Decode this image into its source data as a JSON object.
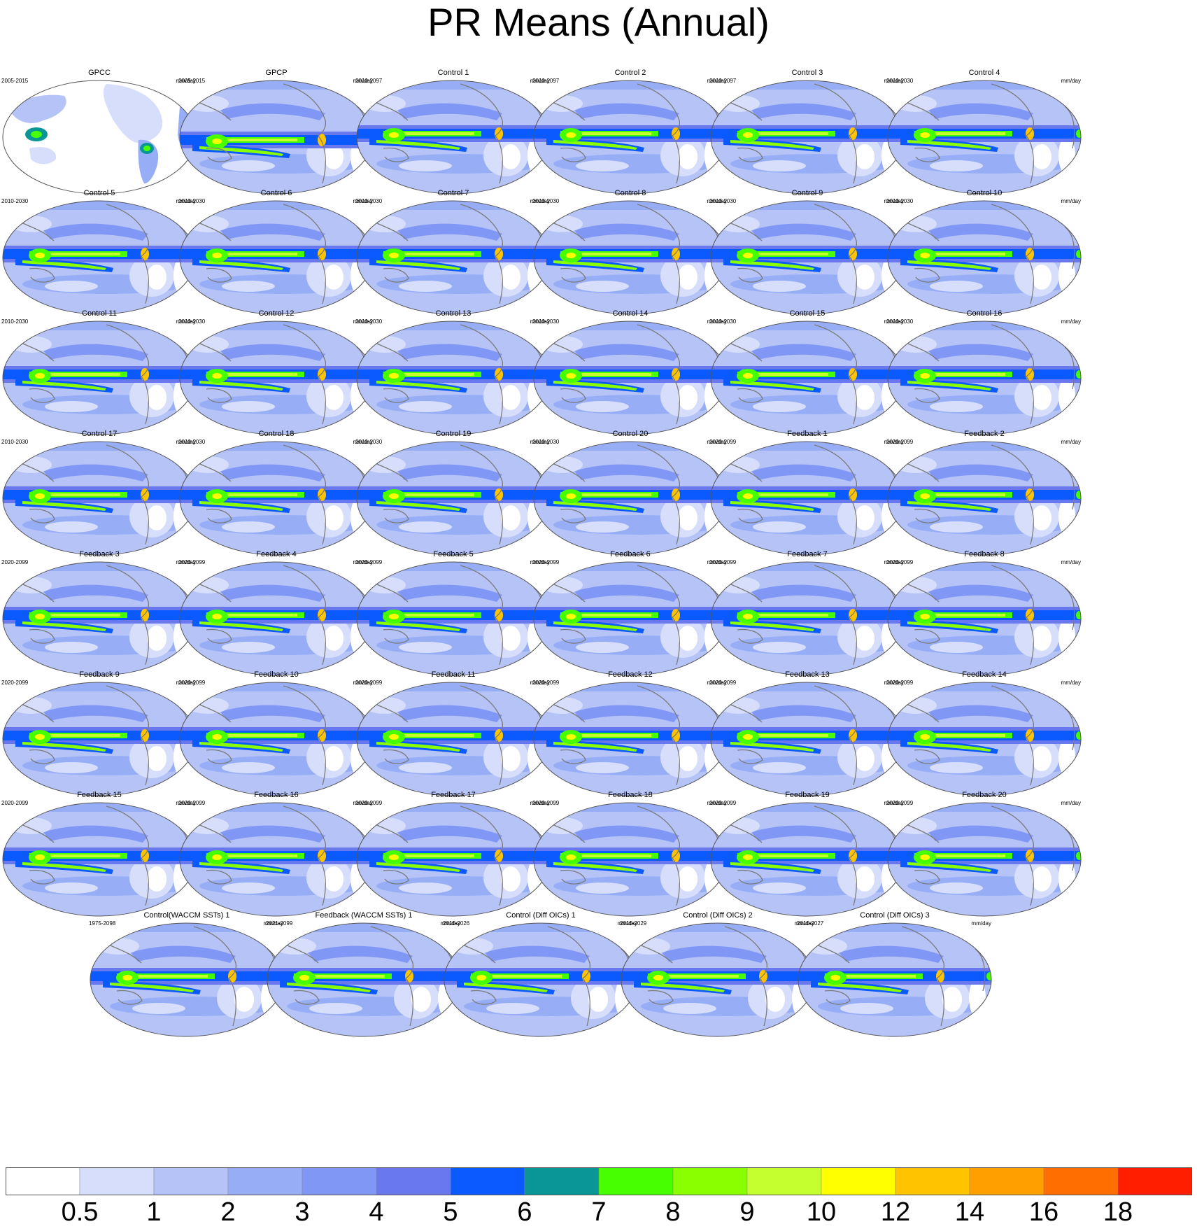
{
  "title": "PR Means (Annual)",
  "chart_data": {
    "type": "map-panels",
    "variable": "PR",
    "units": "mm/day",
    "colorbar": {
      "levels": [
        "0.5",
        "1",
        "2",
        "3",
        "4",
        "5",
        "6",
        "7",
        "8",
        "9",
        "10",
        "12",
        "14",
        "16",
        "18"
      ],
      "colors": [
        "#ffffff",
        "#d6defb",
        "#b5c3f7",
        "#97aef7",
        "#8197f5",
        "#6a78f0",
        "#0a5aff",
        "#0a9696",
        "#48ff00",
        "#8aff00",
        "#c6ff30",
        "#ffff00",
        "#ffc300",
        "#ffa000",
        "#ff6e00",
        "#ff1e00"
      ]
    },
    "panels": [
      {
        "title": "GPCC",
        "period": "2005-2015",
        "units": "mm/day",
        "kind": "land"
      },
      {
        "title": "GPCP",
        "period": "2005-2015",
        "units": "mm/day",
        "kind": "obs"
      },
      {
        "title": "Control 1",
        "period": "2010-2097",
        "units": "mm/day",
        "kind": "model"
      },
      {
        "title": "Control 2",
        "period": "2010-2097",
        "units": "mm/day",
        "kind": "model"
      },
      {
        "title": "Control 3",
        "period": "2010-2097",
        "units": "mm/day",
        "kind": "model"
      },
      {
        "title": "Control 4",
        "period": "2010-2030",
        "units": "mm/day",
        "kind": "model"
      },
      {
        "title": "Control 5",
        "period": "2010-2030",
        "units": "mm/day",
        "kind": "model"
      },
      {
        "title": "Control 6",
        "period": "2010-2030",
        "units": "mm/day",
        "kind": "model"
      },
      {
        "title": "Control 7",
        "period": "2010-2030",
        "units": "mm/day",
        "kind": "model"
      },
      {
        "title": "Control 8",
        "period": "2010-2030",
        "units": "mm/day",
        "kind": "model"
      },
      {
        "title": "Control 9",
        "period": "2010-2030",
        "units": "mm/day",
        "kind": "model"
      },
      {
        "title": "Control 10",
        "period": "2010-2030",
        "units": "mm/day",
        "kind": "model"
      },
      {
        "title": "Control 11",
        "period": "2010-2030",
        "units": "mm/day",
        "kind": "model"
      },
      {
        "title": "Control 12",
        "period": "2010-2030",
        "units": "mm/day",
        "kind": "model"
      },
      {
        "title": "Control 13",
        "period": "2010-2030",
        "units": "mm/day",
        "kind": "model"
      },
      {
        "title": "Control 14",
        "period": "2010-2030",
        "units": "mm/day",
        "kind": "model"
      },
      {
        "title": "Control 15",
        "period": "2010-2030",
        "units": "mm/day",
        "kind": "model"
      },
      {
        "title": "Control 16",
        "period": "2010-2030",
        "units": "mm/day",
        "kind": "model"
      },
      {
        "title": "Control 17",
        "period": "2010-2030",
        "units": "mm/day",
        "kind": "model"
      },
      {
        "title": "Control 18",
        "period": "2010-2030",
        "units": "mm/day",
        "kind": "model"
      },
      {
        "title": "Control 19",
        "period": "2010-2030",
        "units": "mm/day",
        "kind": "model"
      },
      {
        "title": "Control 20",
        "period": "2010-2030",
        "units": "mm/day",
        "kind": "model"
      },
      {
        "title": "Feedback 1",
        "period": "2020-2099",
        "units": "mm/day",
        "kind": "model"
      },
      {
        "title": "Feedback 2",
        "period": "2020-2099",
        "units": "mm/day",
        "kind": "model"
      },
      {
        "title": "Feedback 3",
        "period": "2020-2099",
        "units": "mm/day",
        "kind": "model"
      },
      {
        "title": "Feedback 4",
        "period": "2020-2099",
        "units": "mm/day",
        "kind": "model"
      },
      {
        "title": "Feedback 5",
        "period": "2020-2099",
        "units": "mm/day",
        "kind": "model"
      },
      {
        "title": "Feedback 6",
        "period": "2020-2099",
        "units": "mm/day",
        "kind": "model"
      },
      {
        "title": "Feedback 7",
        "period": "2020-2099",
        "units": "mm/day",
        "kind": "model"
      },
      {
        "title": "Feedback 8",
        "period": "2020-2099",
        "units": "mm/day",
        "kind": "model"
      },
      {
        "title": "Feedback 9",
        "period": "2020-2099",
        "units": "mm/day",
        "kind": "model"
      },
      {
        "title": "Feedback 10",
        "period": "2020-2099",
        "units": "mm/day",
        "kind": "model"
      },
      {
        "title": "Feedback 11",
        "period": "2020-2099",
        "units": "mm/day",
        "kind": "model"
      },
      {
        "title": "Feedback 12",
        "period": "2020-2099",
        "units": "mm/day",
        "kind": "model"
      },
      {
        "title": "Feedback 13",
        "period": "2020-2099",
        "units": "mm/day",
        "kind": "model"
      },
      {
        "title": "Feedback 14",
        "period": "2020-2099",
        "units": "mm/day",
        "kind": "model"
      },
      {
        "title": "Feedback 15",
        "period": "2020-2099",
        "units": "mm/day",
        "kind": "model"
      },
      {
        "title": "Feedback 16",
        "period": "2020-2099",
        "units": "mm/day",
        "kind": "model"
      },
      {
        "title": "Feedback 17",
        "period": "2020-2099",
        "units": "mm/day",
        "kind": "model"
      },
      {
        "title": "Feedback 18",
        "period": "2020-2099",
        "units": "mm/day",
        "kind": "model"
      },
      {
        "title": "Feedback 19",
        "period": "2020-2099",
        "units": "mm/day",
        "kind": "model"
      },
      {
        "title": "Feedback 20",
        "period": "2020-2099",
        "units": "mm/day",
        "kind": "model"
      },
      {
        "title": "Control(WACCM SSTs) 1",
        "period": "1975-2098",
        "units": "mm/day",
        "kind": "model"
      },
      {
        "title": "Feedback (WACCM SSTs) 1",
        "period": "2021-2099",
        "units": "mm/day",
        "kind": "model"
      },
      {
        "title": "Control (Diff OICs) 1",
        "period": "2010-2026",
        "units": "mm/day",
        "kind": "model"
      },
      {
        "title": "Control (Diff OICs) 2",
        "period": "2010-2029",
        "units": "mm/day",
        "kind": "model"
      },
      {
        "title": "Control (Diff OICs) 3",
        "period": "2010-2027",
        "units": "mm/day",
        "kind": "model"
      }
    ]
  }
}
